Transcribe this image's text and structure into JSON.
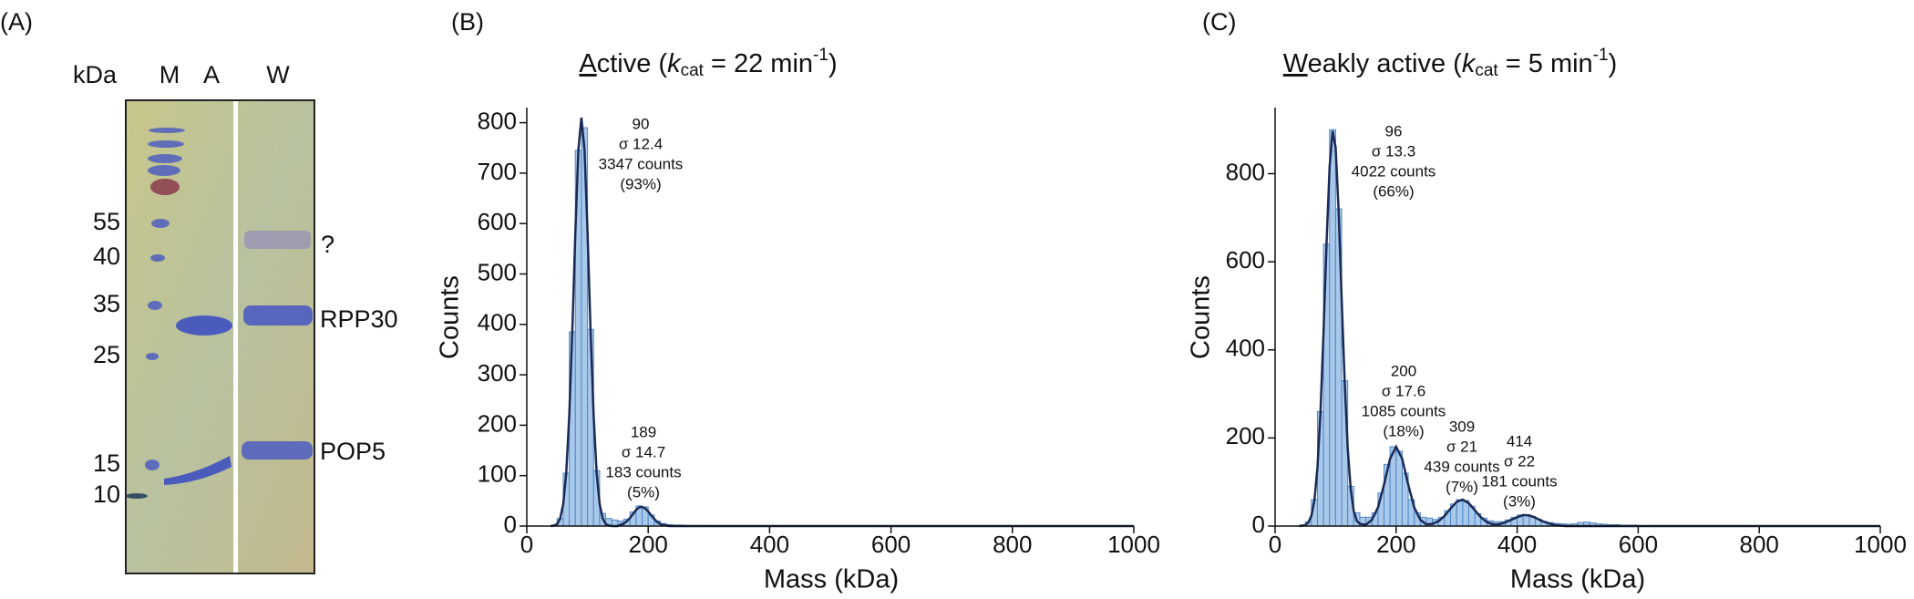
{
  "panel_labels": [
    "(A)",
    "(B)",
    "(C)"
  ],
  "gel": {
    "unit": "kDa",
    "lanes": [
      "M",
      "A",
      "W"
    ],
    "markers": [
      "55",
      "40",
      "35",
      "25",
      "15",
      "10"
    ],
    "bands": [
      "?",
      "RPP30",
      "POP5"
    ]
  },
  "chart_data": [
    {
      "type": "histogram",
      "title_parts": [
        "A",
        "ctive (",
        "k",
        "cat",
        " = 22 min",
        "-1",
        ")"
      ],
      "xlabel": "Mass (kDa)",
      "ylabel": "Counts",
      "xlim": [
        0,
        1000
      ],
      "ylim": [
        0,
        830
      ],
      "xticks": [
        0,
        200,
        400,
        600,
        800,
        1000
      ],
      "yticks": [
        0,
        100,
        200,
        300,
        400,
        500,
        600,
        700,
        800
      ],
      "histogram": {
        "color": "#a9c9ea",
        "edge_color": "#4f86c9",
        "bins": [
          40,
          50,
          60,
          70,
          80,
          90,
          100,
          110,
          120,
          130,
          140,
          150,
          160,
          170,
          180,
          190,
          200,
          210,
          220,
          230,
          240,
          250,
          260,
          270,
          280,
          290,
          300
        ],
        "counts": [
          2,
          15,
          105,
          385,
          745,
          790,
          390,
          110,
          25,
          15,
          12,
          10,
          14,
          28,
          40,
          38,
          22,
          10,
          5,
          3,
          2,
          2,
          1,
          1,
          1,
          1
        ]
      },
      "fit": {
        "color": "#1b2a55",
        "x": [
          40,
          45,
          50,
          55,
          60,
          65,
          70,
          75,
          80,
          85,
          90,
          95,
          100,
          105,
          110,
          115,
          120,
          125,
          130,
          135,
          140,
          145,
          150,
          155,
          160,
          165,
          170,
          175,
          180,
          185,
          190,
          195,
          200,
          205,
          210,
          215,
          220,
          225,
          230,
          235,
          240,
          1000
        ],
        "values": [
          0,
          1,
          4,
          15,
          44,
          106,
          220,
          390,
          585,
          747,
          810,
          747,
          585,
          390,
          220,
          106,
          44,
          15,
          4,
          1,
          0,
          0,
          0,
          3,
          5,
          10,
          16,
          24,
          32,
          37,
          38,
          35,
          29,
          21,
          14,
          8,
          4,
          2,
          1,
          0,
          0,
          0
        ]
      },
      "annotations": [
        [
          "90",
          "σ 12.4",
          "3347 counts",
          "(93%)"
        ],
        [
          "189",
          "σ 14.7",
          "183 counts",
          "(5%)"
        ]
      ]
    },
    {
      "type": "histogram",
      "title_parts": [
        "W",
        "eakly active (",
        "k",
        "cat",
        " = 5 min",
        "-1",
        ")"
      ],
      "xlabel": "Mass (kDa)",
      "ylabel": "Counts",
      "xlim": [
        0,
        1000
      ],
      "ylim": [
        0,
        950
      ],
      "xticks": [
        0,
        200,
        400,
        600,
        800,
        1000
      ],
      "yticks": [
        0,
        200,
        400,
        600,
        800
      ],
      "histogram": {
        "color": "#a9c9ea",
        "edge_color": "#4f86c9",
        "bins": [
          40,
          50,
          60,
          70,
          80,
          90,
          100,
          110,
          120,
          130,
          140,
          150,
          160,
          170,
          180,
          190,
          200,
          210,
          220,
          230,
          240,
          250,
          260,
          270,
          280,
          290,
          300,
          310,
          320,
          330,
          340,
          350,
          360,
          370,
          380,
          390,
          400,
          410,
          420,
          430,
          440,
          450,
          460,
          470,
          480,
          490,
          500,
          510,
          520,
          530,
          540,
          550,
          560,
          570,
          580,
          590,
          600
        ],
        "counts": [
          2,
          10,
          60,
          260,
          640,
          900,
          720,
          330,
          90,
          30,
          20,
          20,
          30,
          75,
          140,
          180,
          170,
          120,
          60,
          30,
          20,
          18,
          15,
          20,
          35,
          50,
          60,
          58,
          45,
          28,
          18,
          12,
          10,
          10,
          14,
          20,
          25,
          25,
          22,
          16,
          10,
          8,
          6,
          5,
          4,
          5,
          8,
          9,
          7,
          5,
          4,
          3,
          3,
          2,
          2,
          2
        ]
      },
      "fit": {
        "color": "#1b2a55",
        "x": [
          40,
          45,
          50,
          55,
          60,
          65,
          70,
          75,
          80,
          85,
          90,
          95,
          100,
          105,
          110,
          115,
          120,
          125,
          130,
          135,
          140,
          150,
          160,
          170,
          180,
          190,
          200,
          210,
          220,
          230,
          240,
          250,
          260,
          270,
          280,
          290,
          300,
          310,
          320,
          330,
          340,
          350,
          360,
          370,
          380,
          390,
          400,
          410,
          420,
          430,
          440,
          450,
          460,
          470,
          480,
          1000
        ],
        "values": [
          0,
          1,
          2,
          8,
          23,
          59,
          133,
          258,
          437,
          639,
          815,
          897,
          860,
          716,
          517,
          325,
          176,
          83,
          34,
          12,
          5,
          3,
          14,
          42,
          94,
          153,
          180,
          153,
          94,
          42,
          14,
          4,
          5,
          11,
          23,
          40,
          55,
          60,
          52,
          36,
          20,
          9,
          4,
          4,
          8,
          14,
          20,
          25,
          24,
          19,
          12,
          7,
          3,
          1,
          0,
          0
        ]
      },
      "annotations": [
        [
          "96",
          "σ 13.3",
          "4022 counts",
          "(66%)"
        ],
        [
          "200",
          "σ 17.6",
          "1085 counts",
          "(18%)"
        ],
        [
          "309",
          "σ 21",
          "439 counts",
          "(7%)"
        ],
        [
          "414",
          "σ 22",
          "181 counts",
          "(3%)"
        ]
      ]
    }
  ]
}
